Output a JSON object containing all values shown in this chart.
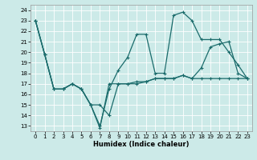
{
  "xlabel": "Humidex (Indice chaleur)",
  "background_color": "#cceae8",
  "grid_color": "#ffffff",
  "line_color": "#1a6b6b",
  "xlim": [
    -0.5,
    23.5
  ],
  "ylim": [
    12.5,
    24.5
  ],
  "yticks": [
    13,
    14,
    15,
    16,
    17,
    18,
    19,
    20,
    21,
    22,
    23,
    24
  ],
  "xticks": [
    0,
    1,
    2,
    3,
    4,
    5,
    6,
    7,
    8,
    9,
    10,
    11,
    12,
    13,
    14,
    15,
    16,
    17,
    18,
    19,
    20,
    21,
    22,
    23
  ],
  "line1_x": [
    0,
    1,
    2,
    3,
    4,
    5,
    6,
    7,
    8,
    9,
    10,
    11,
    12,
    13,
    14,
    15,
    16,
    17,
    18,
    19,
    20,
    21,
    22,
    23
  ],
  "line1_y": [
    23,
    19.8,
    16.5,
    16.5,
    17.0,
    16.5,
    15.0,
    13.0,
    16.5,
    18.3,
    19.5,
    21.7,
    21.7,
    18.0,
    18.0,
    23.5,
    23.8,
    23.0,
    21.2,
    21.2,
    21.2,
    20.0,
    18.8,
    17.5
  ],
  "line2_x": [
    0,
    1,
    2,
    3,
    4,
    5,
    6,
    7,
    8,
    9,
    10,
    11,
    12,
    13,
    14,
    15,
    16,
    17,
    18,
    19,
    20,
    21,
    22,
    23
  ],
  "line2_y": [
    23,
    19.8,
    16.5,
    16.5,
    17.0,
    16.5,
    15.0,
    15.0,
    14.0,
    17.0,
    17.0,
    17.2,
    17.2,
    17.5,
    17.5,
    17.5,
    17.8,
    17.5,
    18.5,
    20.5,
    20.8,
    21.0,
    18.0,
    17.5
  ],
  "line3_x": [
    0,
    1,
    2,
    3,
    4,
    5,
    6,
    7,
    8,
    9,
    10,
    11,
    12,
    13,
    14,
    15,
    16,
    17,
    18,
    19,
    20,
    21,
    22,
    23
  ],
  "line3_y": [
    23,
    19.8,
    16.5,
    16.5,
    17.0,
    16.5,
    15.0,
    12.8,
    17.0,
    17.0,
    17.0,
    17.0,
    17.2,
    17.5,
    17.5,
    17.5,
    17.8,
    17.5,
    17.5,
    17.5,
    17.5,
    17.5,
    17.5,
    17.5
  ]
}
